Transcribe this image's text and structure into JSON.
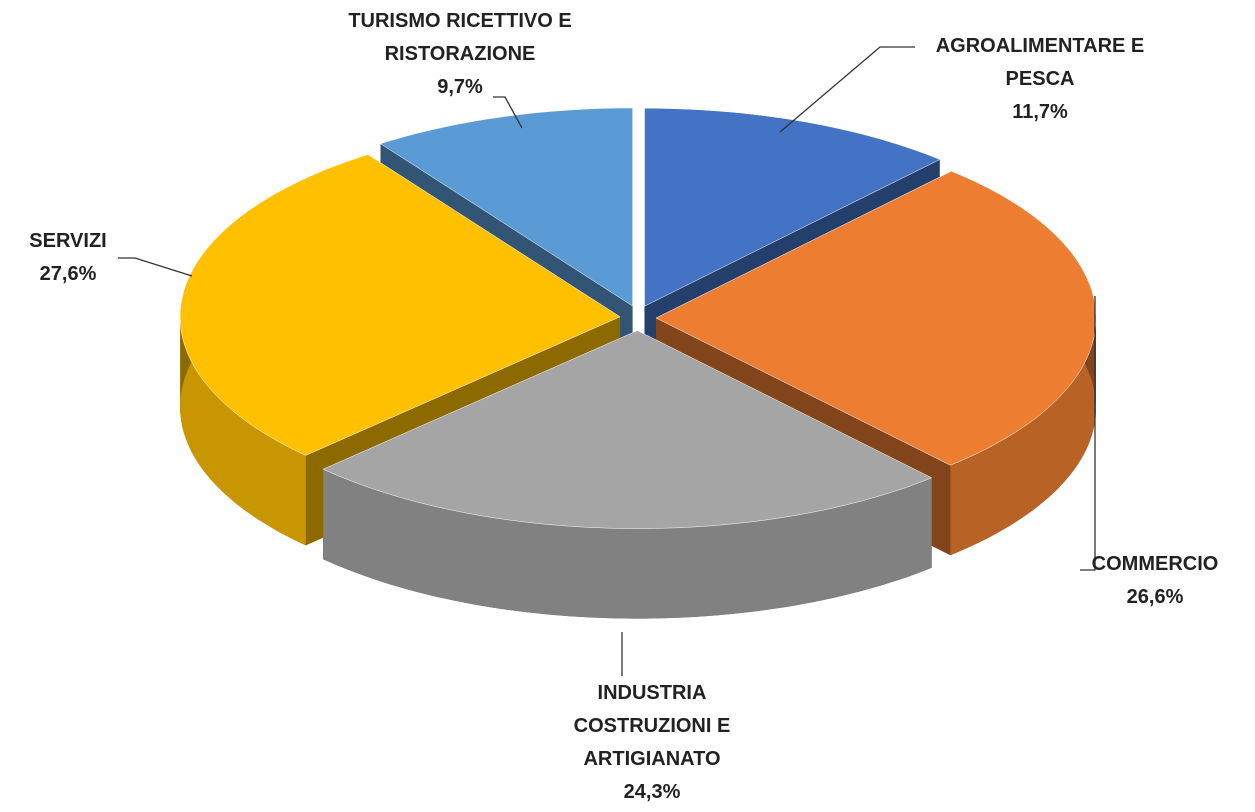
{
  "chart_data": {
    "type": "pie",
    "categories": [
      "AGROALIMENTARE E PESCA",
      "COMMERCIO",
      "INDUSTRIA COSTRUZIONI E ARTIGIANATO",
      "SERVIZI",
      "TURISMO RICETTIVO E RISTORAZIONE"
    ],
    "values": [
      11.7,
      26.6,
      24.3,
      27.6,
      9.7
    ],
    "value_labels": [
      "11,7%",
      "26,6%",
      "24,3%",
      "27,6%",
      "9,7%"
    ],
    "colors": [
      "#4472c4",
      "#ed7d31",
      "#a5a5a5",
      "#ffc000",
      "#5b9bd5"
    ]
  }
}
